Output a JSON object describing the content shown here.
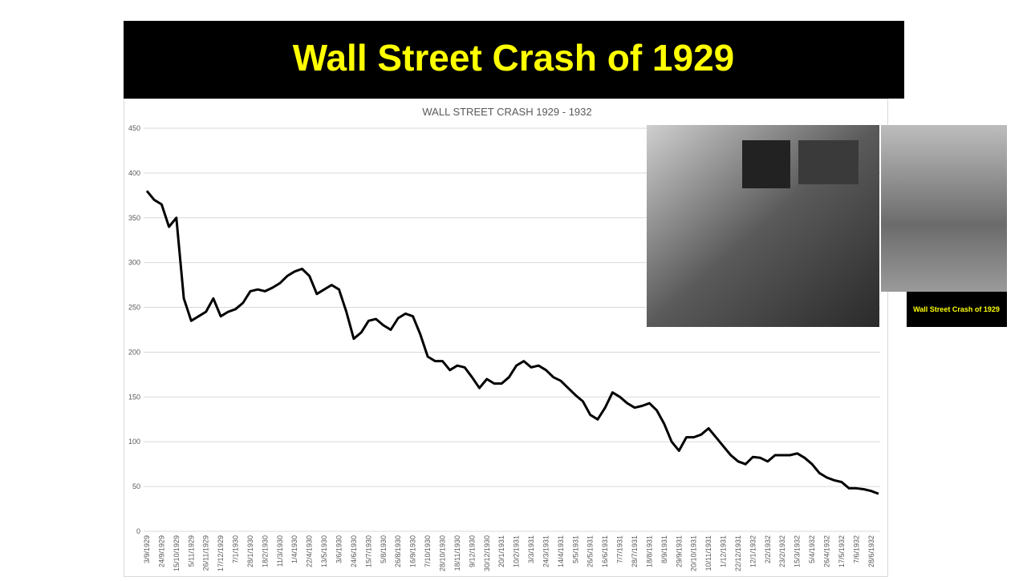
{
  "slide_title": "Wall Street Crash of 1929",
  "photo_caption": "Wall Street Crash of 1929",
  "chart_data": {
    "type": "line",
    "title": "WALL STREET CRASH 1929 - 1932",
    "color": "#000000",
    "grid": true,
    "ylim": [
      0,
      450
    ],
    "yticks": [
      0,
      50,
      100,
      150,
      200,
      250,
      300,
      350,
      400,
      450
    ],
    "categories": [
      "3/9/1929",
      null,
      "24/9/1929",
      null,
      "15/10/1929",
      null,
      "5/11/1929",
      null,
      "26/11/1929",
      null,
      "17/12/1929",
      null,
      "7/1/1930",
      null,
      "28/1/1930",
      null,
      "18/2/1930",
      null,
      "11/3/1930",
      null,
      "1/4/1930",
      null,
      "22/4/1930",
      null,
      "13/5/1930",
      null,
      "3/6/1930",
      null,
      "24/6/1930",
      null,
      "15/7/1930",
      null,
      "5/8/1930",
      null,
      "26/8/1930",
      null,
      "16/9/1930",
      null,
      "7/10/1930",
      null,
      "28/10/1930",
      null,
      "18/11/1930",
      null,
      "9/12/1930",
      null,
      "30/12/1930",
      null,
      "20/1/1931",
      null,
      "10/2/1931",
      null,
      "3/3/1931",
      null,
      "24/3/1931",
      null,
      "14/4/1931",
      null,
      "5/5/1931",
      null,
      "26/5/1931",
      null,
      "16/6/1931",
      null,
      "7/7/1931",
      null,
      "28/7/1931",
      null,
      "18/8/1931",
      null,
      "8/9/1931",
      null,
      "29/9/1931",
      null,
      "20/10/1931",
      null,
      "10/11/1931",
      null,
      "1/12/1931",
      null,
      "22/12/1931",
      null,
      "12/1/1932",
      null,
      "2/2/1932",
      null,
      "23/2/1932",
      null,
      "15/3/1932",
      null,
      "5/4/1932",
      null,
      "26/4/1932",
      null,
      "17/5/1932",
      null,
      "7/6/1932",
      null,
      "28/6/1932",
      null
    ],
    "values": [
      380,
      370,
      365,
      340,
      350,
      260,
      235,
      240,
      245,
      260,
      240,
      245,
      248,
      255,
      268,
      270,
      268,
      272,
      277,
      285,
      290,
      293,
      285,
      265,
      270,
      275,
      270,
      245,
      215,
      222,
      235,
      237,
      230,
      225,
      238,
      243,
      240,
      220,
      195,
      190,
      190,
      180,
      185,
      183,
      172,
      160,
      170,
      165,
      165,
      172,
      185,
      190,
      183,
      185,
      180,
      172,
      168,
      160,
      152,
      145,
      130,
      125,
      138,
      155,
      150,
      143,
      138,
      140,
      143,
      135,
      120,
      100,
      90,
      105,
      105,
      108,
      115,
      105,
      95,
      85,
      78,
      75,
      83,
      82,
      78,
      85,
      85,
      85,
      87,
      82,
      75,
      65,
      60,
      57,
      55,
      48,
      48,
      47,
      45,
      42
    ]
  }
}
